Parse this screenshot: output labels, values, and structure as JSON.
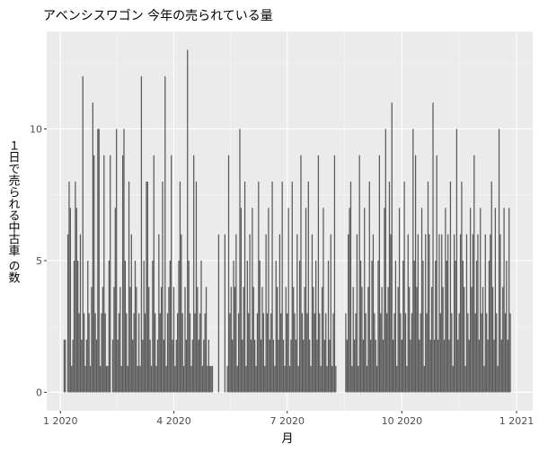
{
  "chart_data": {
    "type": "bar",
    "title": "アベンシスワゴン 今年の売られている量",
    "x_label": "月",
    "y_label": "１日で売られる中古車 の数",
    "color": "#595959",
    "grid": true,
    "xlim": [
      "2019-12-21",
      "2021-01-14"
    ],
    "xticks": [
      {
        "value": "2020-01-01",
        "label": "1 2020"
      },
      {
        "value": "2020-04-01",
        "label": "4 2020"
      },
      {
        "value": "2020-07-01",
        "label": "7 2020"
      },
      {
        "value": "2020-10-01",
        "label": "10 2020"
      },
      {
        "value": "2021-01-01",
        "label": "1 2021"
      }
    ],
    "ylim": [
      -0.7,
      13.7
    ],
    "yticks": [
      0,
      5,
      10
    ],
    "x": [
      "2020-01-04",
      "2020-01-05",
      "2020-01-06",
      "2020-01-07",
      "2020-01-08",
      "2020-01-09",
      "2020-01-10",
      "2020-01-11",
      "2020-01-12",
      "2020-01-13",
      "2020-01-14",
      "2020-01-15",
      "2020-01-16",
      "2020-01-17",
      "2020-01-18",
      "2020-01-19",
      "2020-01-20",
      "2020-01-21",
      "2020-01-22",
      "2020-01-23",
      "2020-01-24",
      "2020-01-25",
      "2020-01-26",
      "2020-01-27",
      "2020-01-28",
      "2020-01-29",
      "2020-01-30",
      "2020-01-31",
      "2020-02-01",
      "2020-02-02",
      "2020-02-03",
      "2020-02-04",
      "2020-02-05",
      "2020-02-06",
      "2020-02-07",
      "2020-02-08",
      "2020-02-09",
      "2020-02-10",
      "2020-02-11",
      "2020-02-12",
      "2020-02-13",
      "2020-02-14",
      "2020-02-15",
      "2020-02-16",
      "2020-02-17",
      "2020-02-18",
      "2020-02-19",
      "2020-02-20",
      "2020-02-21",
      "2020-02-22",
      "2020-02-23",
      "2020-02-24",
      "2020-02-25",
      "2020-02-26",
      "2020-02-27",
      "2020-02-28",
      "2020-02-29",
      "2020-03-01",
      "2020-03-02",
      "2020-03-03",
      "2020-03-04",
      "2020-03-05",
      "2020-03-06",
      "2020-03-07",
      "2020-03-08",
      "2020-03-09",
      "2020-03-10",
      "2020-03-11",
      "2020-03-12",
      "2020-03-13",
      "2020-03-14",
      "2020-03-15",
      "2020-03-16",
      "2020-03-17",
      "2020-03-18",
      "2020-03-19",
      "2020-03-20",
      "2020-03-21",
      "2020-03-22",
      "2020-03-23",
      "2020-03-24",
      "2020-03-25",
      "2020-03-26",
      "2020-03-27",
      "2020-03-28",
      "2020-03-29",
      "2020-03-30",
      "2020-03-31",
      "2020-04-01",
      "2020-04-02",
      "2020-04-03",
      "2020-04-04",
      "2020-04-05",
      "2020-04-06",
      "2020-04-07",
      "2020-04-08",
      "2020-04-09",
      "2020-04-10",
      "2020-04-11",
      "2020-04-12",
      "2020-04-13",
      "2020-04-14",
      "2020-04-15",
      "2020-04-16",
      "2020-04-17",
      "2020-04-18",
      "2020-04-19",
      "2020-04-20",
      "2020-04-21",
      "2020-04-22",
      "2020-04-23",
      "2020-04-24",
      "2020-04-25",
      "2020-04-26",
      "2020-04-27",
      "2020-04-28",
      "2020-04-29",
      "2020-04-30",
      "2020-05-01",
      "2020-05-02",
      "2020-05-07",
      "2020-05-12",
      "2020-05-14",
      "2020-05-15",
      "2020-05-16",
      "2020-05-17",
      "2020-05-18",
      "2020-05-19",
      "2020-05-20",
      "2020-05-21",
      "2020-05-22",
      "2020-05-23",
      "2020-05-24",
      "2020-05-25",
      "2020-05-26",
      "2020-05-27",
      "2020-05-28",
      "2020-05-29",
      "2020-05-30",
      "2020-05-31",
      "2020-06-01",
      "2020-06-02",
      "2020-06-03",
      "2020-06-04",
      "2020-06-05",
      "2020-06-06",
      "2020-06-07",
      "2020-06-08",
      "2020-06-09",
      "2020-06-10",
      "2020-06-11",
      "2020-06-12",
      "2020-06-13",
      "2020-06-14",
      "2020-06-15",
      "2020-06-16",
      "2020-06-17",
      "2020-06-18",
      "2020-06-19",
      "2020-06-20",
      "2020-06-21",
      "2020-06-22",
      "2020-06-23",
      "2020-06-24",
      "2020-06-25",
      "2020-06-26",
      "2020-06-27",
      "2020-06-28",
      "2020-06-29",
      "2020-06-30",
      "2020-07-01",
      "2020-07-02",
      "2020-07-03",
      "2020-07-04",
      "2020-07-05",
      "2020-07-06",
      "2020-07-07",
      "2020-07-08",
      "2020-07-09",
      "2020-07-10",
      "2020-07-11",
      "2020-07-12",
      "2020-07-13",
      "2020-07-14",
      "2020-07-15",
      "2020-07-16",
      "2020-07-17",
      "2020-07-18",
      "2020-07-19",
      "2020-07-20",
      "2020-07-21",
      "2020-07-22",
      "2020-07-23",
      "2020-07-24",
      "2020-07-25",
      "2020-07-26",
      "2020-07-27",
      "2020-07-28",
      "2020-07-29",
      "2020-07-30",
      "2020-07-31",
      "2020-08-01",
      "2020-08-02",
      "2020-08-03",
      "2020-08-04",
      "2020-08-05",
      "2020-08-06",
      "2020-08-07",
      "2020-08-08",
      "2020-08-09",
      "2020-08-17",
      "2020-08-18",
      "2020-08-19",
      "2020-08-20",
      "2020-08-21",
      "2020-08-22",
      "2020-08-23",
      "2020-08-24",
      "2020-08-25",
      "2020-08-26",
      "2020-08-27",
      "2020-08-28",
      "2020-08-29",
      "2020-08-30",
      "2020-08-31",
      "2020-09-01",
      "2020-09-02",
      "2020-09-03",
      "2020-09-04",
      "2020-09-05",
      "2020-09-06",
      "2020-09-07",
      "2020-09-08",
      "2020-09-09",
      "2020-09-10",
      "2020-09-11",
      "2020-09-12",
      "2020-09-13",
      "2020-09-14",
      "2020-09-15",
      "2020-09-16",
      "2020-09-17",
      "2020-09-18",
      "2020-09-19",
      "2020-09-20",
      "2020-09-21",
      "2020-09-22",
      "2020-09-23",
      "2020-09-24",
      "2020-09-25",
      "2020-09-26",
      "2020-09-27",
      "2020-09-28",
      "2020-09-29",
      "2020-09-30",
      "2020-10-01",
      "2020-10-02",
      "2020-10-03",
      "2020-10-04",
      "2020-10-05",
      "2020-10-06",
      "2020-10-07",
      "2020-10-08",
      "2020-10-09",
      "2020-10-10",
      "2020-10-11",
      "2020-10-12",
      "2020-10-13",
      "2020-10-14",
      "2020-10-15",
      "2020-10-16",
      "2020-10-17",
      "2020-10-18",
      "2020-10-19",
      "2020-10-20",
      "2020-10-21",
      "2020-10-22",
      "2020-10-23",
      "2020-10-24",
      "2020-10-25",
      "2020-10-26",
      "2020-10-27",
      "2020-10-28",
      "2020-10-29",
      "2020-10-30",
      "2020-10-31",
      "2020-11-01",
      "2020-11-02",
      "2020-11-03",
      "2020-11-04",
      "2020-11-05",
      "2020-11-06",
      "2020-11-07",
      "2020-11-08",
      "2020-11-09",
      "2020-11-10",
      "2020-11-11",
      "2020-11-12",
      "2020-11-13",
      "2020-11-14",
      "2020-11-15",
      "2020-11-16",
      "2020-11-17",
      "2020-11-18",
      "2020-11-19",
      "2020-11-20",
      "2020-11-21",
      "2020-11-22",
      "2020-11-23",
      "2020-11-24",
      "2020-11-25",
      "2020-11-26",
      "2020-11-27",
      "2020-11-28",
      "2020-11-29",
      "2020-11-30",
      "2020-12-01",
      "2020-12-02",
      "2020-12-03",
      "2020-12-04",
      "2020-12-05",
      "2020-12-06",
      "2020-12-07",
      "2020-12-08",
      "2020-12-09",
      "2020-12-10",
      "2020-12-11",
      "2020-12-12",
      "2020-12-13",
      "2020-12-14",
      "2020-12-15",
      "2020-12-16",
      "2020-12-17",
      "2020-12-18",
      "2020-12-19",
      "2020-12-20",
      "2020-12-21",
      "2020-12-22",
      "2020-12-23",
      "2020-12-24",
      "2020-12-25",
      "2020-12-26",
      "2020-12-27"
    ],
    "values": [
      2,
      2,
      0,
      6,
      8,
      7,
      1,
      2,
      5,
      8,
      7,
      5,
      3,
      6,
      2,
      12,
      3,
      1,
      2,
      5,
      3,
      1,
      4,
      11,
      9,
      3,
      2,
      10,
      10,
      1,
      3,
      4,
      9,
      3,
      1,
      1,
      5,
      9,
      0,
      2,
      4,
      7,
      10,
      2,
      3,
      4,
      1,
      9,
      10,
      5,
      3,
      1,
      8,
      4,
      6,
      2,
      3,
      5,
      4,
      1,
      3,
      1,
      12,
      2,
      5,
      3,
      8,
      8,
      4,
      2,
      1,
      5,
      9,
      3,
      1,
      2,
      6,
      3,
      4,
      8,
      2,
      12,
      1,
      3,
      4,
      5,
      9,
      2,
      4,
      1,
      2,
      3,
      5,
      8,
      6,
      3,
      1,
      4,
      2,
      13,
      5,
      3,
      1,
      2,
      9,
      3,
      8,
      4,
      2,
      3,
      5,
      1,
      2,
      3,
      4,
      1,
      2,
      1,
      1,
      1,
      6,
      6,
      1,
      9,
      3,
      4,
      2,
      5,
      4,
      6,
      1,
      3,
      10,
      7,
      2,
      4,
      8,
      1,
      5,
      3,
      6,
      2,
      7,
      4,
      2,
      1,
      3,
      8,
      5,
      2,
      4,
      3,
      1,
      6,
      3,
      7,
      2,
      3,
      8,
      2,
      1,
      5,
      4,
      2,
      6,
      3,
      8,
      2,
      1,
      4,
      3,
      7,
      1,
      2,
      8,
      4,
      3,
      2,
      6,
      1,
      5,
      9,
      3,
      2,
      4,
      7,
      3,
      8,
      2,
      1,
      6,
      4,
      3,
      5,
      2,
      9,
      3,
      1,
      4,
      7,
      2,
      3,
      1,
      5,
      2,
      6,
      1,
      3,
      9,
      1,
      3,
      2,
      6,
      7,
      8,
      1,
      4,
      2,
      3,
      6,
      1,
      9,
      5,
      4,
      2,
      7,
      3,
      1,
      4,
      8,
      2,
      5,
      6,
      3,
      2,
      1,
      5,
      9,
      3,
      4,
      2,
      7,
      10,
      3,
      4,
      8,
      6,
      11,
      2,
      3,
      5,
      1,
      4,
      7,
      3,
      2,
      5,
      8,
      3,
      1,
      6,
      4,
      2,
      3,
      10,
      5,
      9,
      4,
      6,
      2,
      3,
      7,
      5,
      1,
      6,
      3,
      8,
      6,
      2,
      4,
      11,
      2,
      5,
      9,
      2,
      6,
      3,
      6,
      4,
      2,
      7,
      5,
      6,
      2,
      8,
      3,
      1,
      6,
      5,
      10,
      2,
      3,
      6,
      8,
      5,
      4,
      1,
      6,
      3,
      2,
      7,
      4,
      6,
      9,
      3,
      5,
      6,
      2,
      7,
      3,
      4,
      1,
      6,
      3,
      2,
      5,
      6,
      8,
      4,
      2,
      7,
      3,
      1,
      10,
      6,
      2,
      4,
      7,
      3,
      5,
      2,
      7,
      3
    ]
  }
}
